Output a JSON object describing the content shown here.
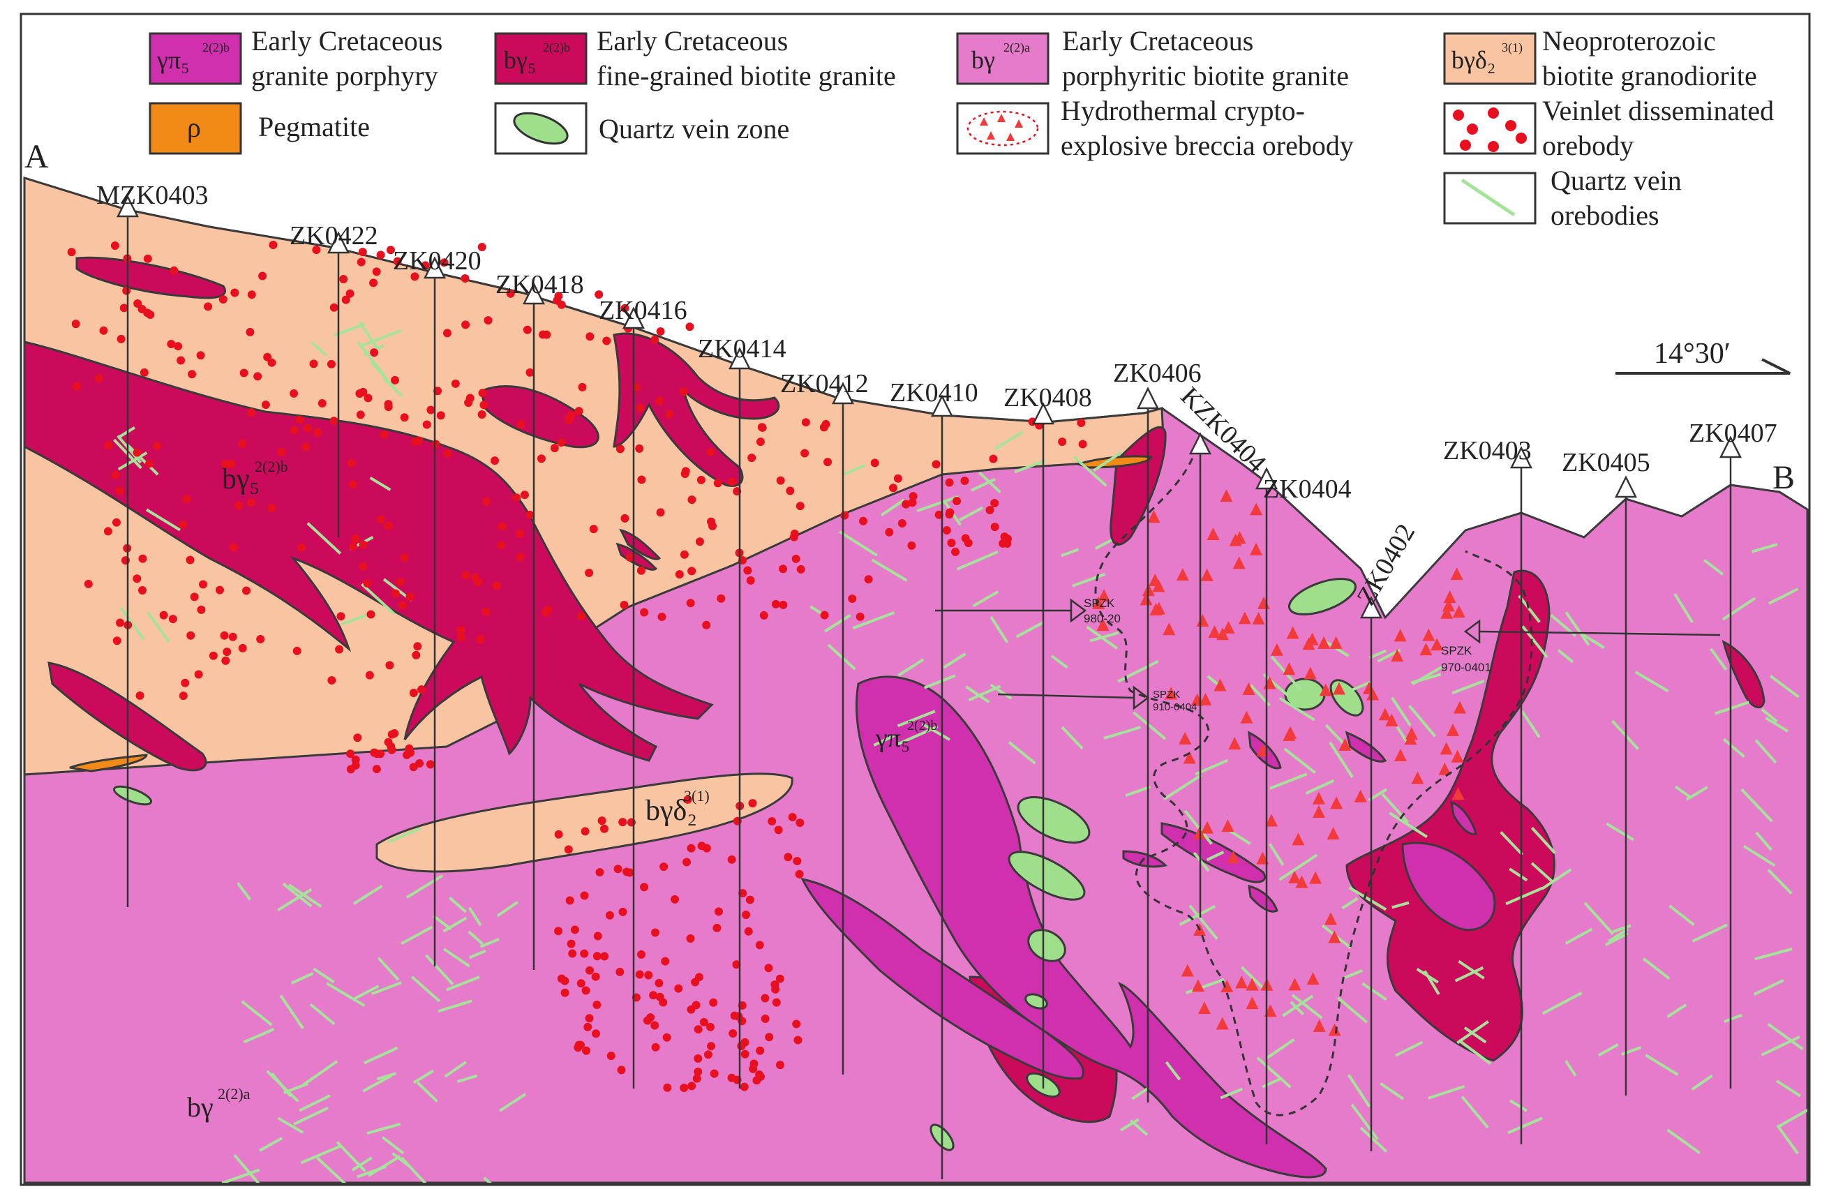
{
  "colors": {
    "granite_porphyry": "#d02fae",
    "fine_grained_granite": "#cc0a5b",
    "porphyritic_granite": "#e77bcb",
    "granodiorite": "#f8c4a1",
    "pegmatite": "#f28a17",
    "quartz_vein_zone": "#9fdf8c",
    "quartz_vein_line": "#a6e39a",
    "orebody_dot": "#e8101f",
    "breccia_triangle": "#f23a3a",
    "outline": "#3a3a3a"
  },
  "legend": {
    "items": [
      {
        "code": "γπ₅",
        "code_sup": "2(2)b",
        "label1": "Early Cretaceous",
        "label2": "granite porphyry"
      },
      {
        "code": "bγ₅",
        "code_sup": "2(2)b",
        "label1": "Early Cretaceous",
        "label2": "fine-grained biotite granite"
      },
      {
        "code": "bγ",
        "code_sup": "2(2)a",
        "label1": "Early Cretaceous",
        "label2": "porphyritic biotite granite"
      },
      {
        "code": "bγδ₂",
        "code_sup": "3(1)",
        "label1": "Neoproterozoic",
        "label2": "biotite granodiorite"
      },
      {
        "code": "ρ",
        "label1": "Pegmatite"
      },
      {
        "label1": "Quartz vein zone"
      },
      {
        "label1": "Hydrothermal crypto-",
        "label2": "explosive breccia orebody"
      },
      {
        "label1": "Veinlet disseminated",
        "label2": "orebody"
      },
      {
        "label1": "Quartz vein",
        "label2": "orebodies"
      }
    ]
  },
  "section": {
    "end_a": "A",
    "end_b": "B",
    "orientation": "14°30′",
    "boreholes": [
      "MZK0403",
      "ZK0422",
      "ZK0420",
      "ZK0418",
      "ZK0416",
      "ZK0414",
      "ZK0412",
      "ZK0410",
      "ZK0408",
      "ZK0406",
      "KZK0404",
      "ZK0404",
      "ZK0402",
      "ZK0403",
      "ZK0405",
      "ZK0407"
    ],
    "sample_holes": [
      {
        "line1": "SPZK",
        "line2": "980-20"
      },
      {
        "line1": "SPZK",
        "line2": "910-0404"
      },
      {
        "line1": "SPZK",
        "line2": "970-0401"
      }
    ],
    "unit_labels": {
      "fine_granite": "bγ₅",
      "fine_granite_sup": "2(2)b",
      "granodiorite": "bγδ₂",
      "granodiorite_sup": "3(1)",
      "porphyry": "γπ₅",
      "porphyry_sup": "2(2)b",
      "porphyritic": "bγ",
      "porphyritic_sup": "2(2)a"
    }
  }
}
